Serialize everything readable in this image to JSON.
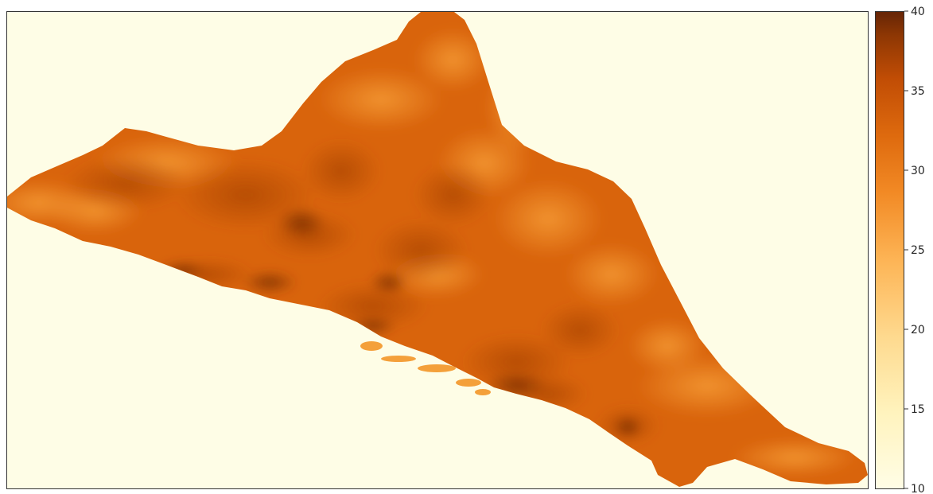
{
  "chart_data": {
    "type": "heatmap",
    "title": "",
    "xlabel": "",
    "ylabel": "",
    "axes_ticks_visible": false,
    "grid": false,
    "colormap": "YlOrBr",
    "colorbar": {
      "position": "right",
      "range": [
        10,
        40
      ],
      "ticks": [
        "10",
        "15",
        "20",
        "25",
        "30",
        "35",
        "40"
      ],
      "tick_values": [
        10,
        15,
        20,
        25,
        30,
        35,
        40
      ]
    },
    "no_data_value": 10,
    "region_value_range_approx": [
      22,
      38
    ],
    "typical_value_approx": 30
  },
  "colors": {
    "background": "#fefde6",
    "low": "#fffde6",
    "mid": "#f28a25",
    "high": "#662506"
  }
}
